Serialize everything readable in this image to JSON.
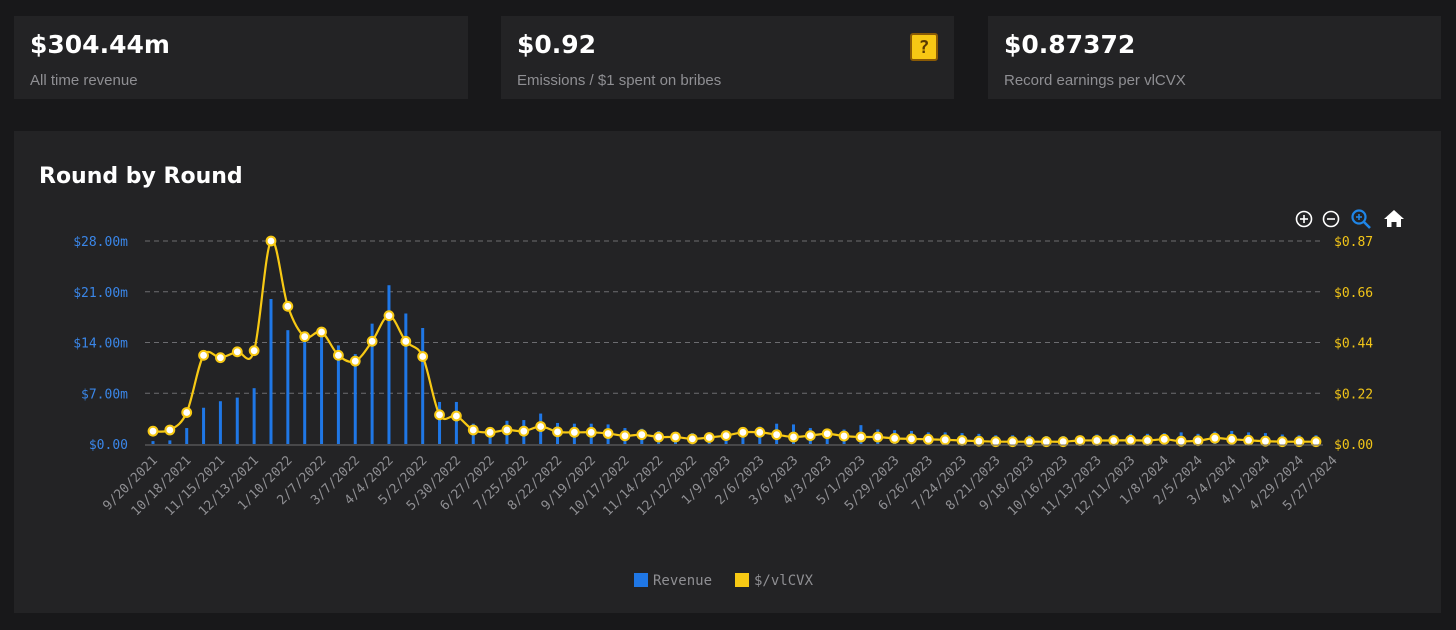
{
  "stats": [
    {
      "value": "$304.44m",
      "label": "All time revenue"
    },
    {
      "value": "$0.92",
      "label": "Emissions / $1 spent on bribes",
      "icon": "question-block-icon"
    },
    {
      "value": "$0.87372",
      "label": "Record earnings per vlCVX"
    }
  ],
  "toolbar": {
    "zoom_in_icon": "zoom-in-icon",
    "zoom_out_icon": "zoom-out-icon",
    "selection_zoom_icon": "magnifier-zoom-icon",
    "reset_icon": "home-icon"
  },
  "chart_data": {
    "type": "bar+line",
    "title": "Round by Round",
    "colors": {
      "revenue": "#1f77e6",
      "vlcvx": "#f7c914",
      "left_axis": "#3a86e8",
      "right_axis": "#f2c518"
    },
    "x_tick_labels": [
      "9/20/2021",
      "10/18/2021",
      "11/15/2021",
      "12/13/2021",
      "1/10/2022",
      "2/7/2022",
      "3/7/2022",
      "4/4/2022",
      "5/2/2022",
      "5/30/2022",
      "6/27/2022",
      "7/25/2022",
      "8/22/2022",
      "9/19/2022",
      "10/17/2022",
      "11/14/2022",
      "12/12/2022",
      "1/9/2023",
      "2/6/2023",
      "3/6/2023",
      "4/3/2023",
      "5/1/2023",
      "5/29/2023",
      "6/26/2023",
      "7/24/2023",
      "8/21/2023",
      "9/18/2023",
      "10/16/2023",
      "11/13/2023",
      "12/11/2023",
      "1/8/2024",
      "2/5/2024",
      "3/4/2024",
      "4/1/2024",
      "4/29/2024",
      "5/27/2024"
    ],
    "y_left": {
      "min": 0,
      "max": 28,
      "ticks": [
        0,
        7,
        14,
        21,
        28
      ],
      "tick_labels": [
        "$0.00",
        "$7.00m",
        "$14.00m",
        "$21.00m",
        "$28.00m"
      ]
    },
    "y_right": {
      "min": 0,
      "max": 0.87,
      "ticks": [
        0,
        0.22,
        0.44,
        0.66,
        0.87
      ],
      "tick_labels": [
        "$0.00",
        "$0.22",
        "$0.44",
        "$0.66",
        "$0.87"
      ]
    },
    "series": [
      {
        "name": "Revenue",
        "axis": "left",
        "unit": "$m",
        "values": [
          0.4,
          0.5,
          2.2,
          5.0,
          5.9,
          6.4,
          7.7,
          20.0,
          15.7,
          15.0,
          15.2,
          13.6,
          12.4,
          16.6,
          21.9,
          18.0,
          16.0,
          5.8,
          5.8,
          2.8,
          2.3,
          3.2,
          3.3,
          4.2,
          2.9,
          2.8,
          2.8,
          2.7,
          2.2,
          2.1,
          1.8,
          1.6,
          1.5,
          1.4,
          1.5,
          1.7,
          2.4,
          2.8,
          2.7,
          2.2,
          2.0,
          2.0,
          2.6,
          2.0,
          1.9,
          1.8,
          1.6,
          1.6,
          1.5,
          1.4,
          1.2,
          1.2,
          1.2,
          1.1,
          1.1,
          1.1,
          1.3,
          1.3,
          1.4,
          1.4,
          1.5,
          1.6,
          1.4,
          1.7,
          1.8,
          1.6,
          1.5,
          1.3,
          1.2,
          1.2
        ]
      },
      {
        "name": "$/vlCVX",
        "axis": "right",
        "unit": "$",
        "values": [
          0.055,
          0.06,
          0.135,
          0.38,
          0.37,
          0.395,
          0.4,
          0.87,
          0.59,
          0.46,
          0.48,
          0.38,
          0.355,
          0.44,
          0.55,
          0.44,
          0.375,
          0.125,
          0.12,
          0.06,
          0.05,
          0.06,
          0.055,
          0.075,
          0.052,
          0.05,
          0.05,
          0.045,
          0.035,
          0.04,
          0.03,
          0.03,
          0.022,
          0.028,
          0.036,
          0.05,
          0.05,
          0.04,
          0.03,
          0.036,
          0.044,
          0.034,
          0.03,
          0.03,
          0.024,
          0.022,
          0.02,
          0.018,
          0.015,
          0.012,
          0.01,
          0.01,
          0.01,
          0.01,
          0.01,
          0.015,
          0.015,
          0.015,
          0.016,
          0.015,
          0.02,
          0.012,
          0.014,
          0.025,
          0.02,
          0.016,
          0.012,
          0.01,
          0.01,
          0.01
        ]
      }
    ],
    "legend": {
      "position": "bottom-center",
      "items": [
        "Revenue",
        "$/vlCVX"
      ]
    },
    "grid": "horizontal-dashed"
  }
}
